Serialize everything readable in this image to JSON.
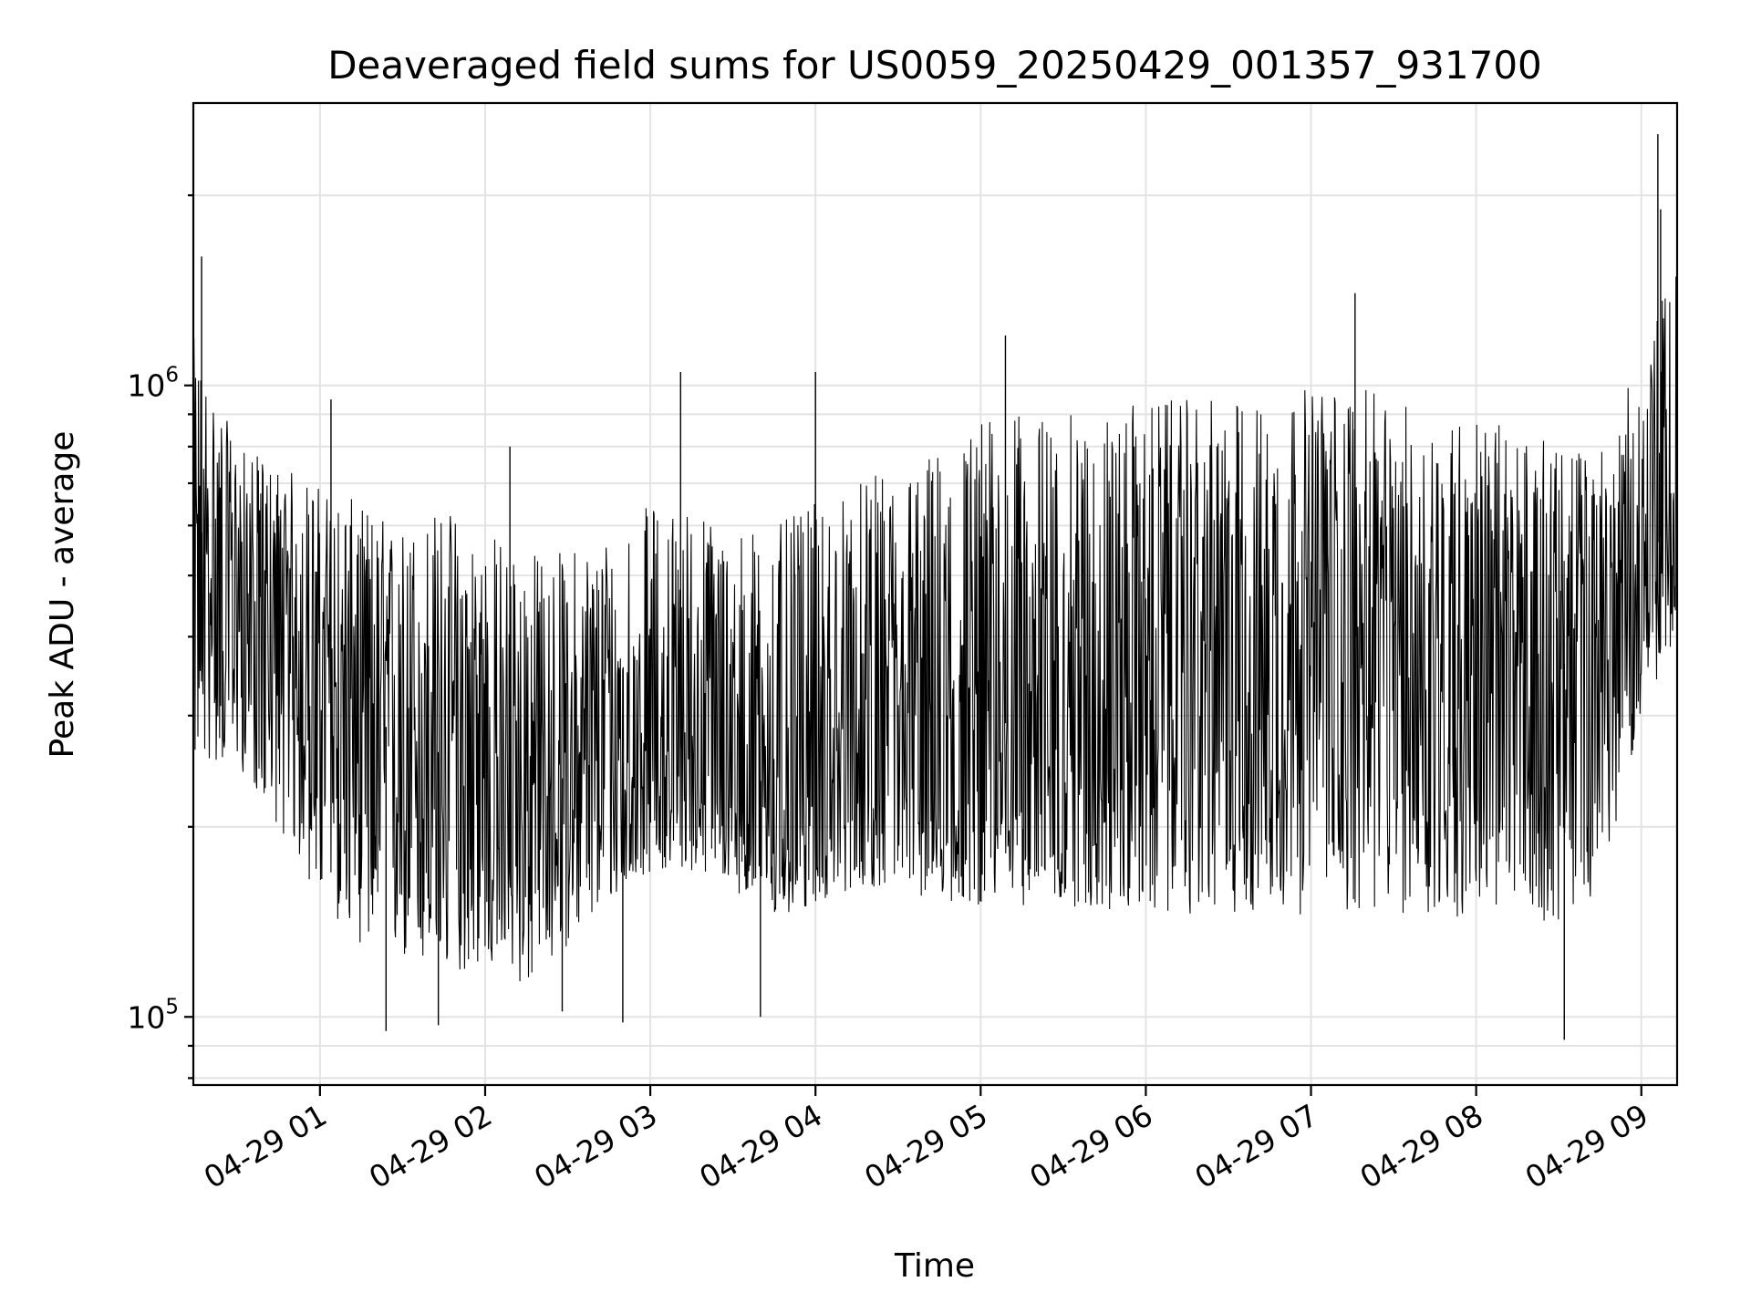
{
  "chart_data": {
    "type": "line",
    "title": "Deaveraged field sums for US0059_20250429_001357_931700",
    "xlabel": "Time",
    "ylabel": "Peak ADU - average",
    "yscale": "log",
    "xlim": [
      "04-29 00:14",
      "04-29 09:13"
    ],
    "ylim": [
      78000,
      2800000
    ],
    "grid": true,
    "line_color": "#000000",
    "x_ticks": [
      "04-29 01",
      "04-29 02",
      "04-29 03",
      "04-29 04",
      "04-29 05",
      "04-29 06",
      "04-29 07",
      "04-29 08",
      "04-29 09"
    ],
    "y_ticks": [
      {
        "base": "10",
        "exp": "5",
        "value": 100000
      },
      {
        "base": "10",
        "exp": "6",
        "value": 1000000
      }
    ],
    "series": [
      {
        "x": [
          "04-29 00:14",
          "04-29 00:30",
          "04-29 00:45",
          "04-29 01:00",
          "04-29 01:15",
          "04-29 01:30",
          "04-29 01:45",
          "04-29 02:00",
          "04-29 02:15",
          "04-29 02:30",
          "04-29 02:45",
          "04-29 03:00",
          "04-29 03:15",
          "04-29 03:30",
          "04-29 03:45",
          "04-29 04:00",
          "04-29 04:15",
          "04-29 04:30",
          "04-29 04:45",
          "04-29 05:00",
          "04-29 05:15",
          "04-29 05:30",
          "04-29 05:45",
          "04-29 06:00",
          "04-29 06:15",
          "04-29 06:30",
          "04-29 06:45",
          "04-29 07:00",
          "04-29 07:15",
          "04-29 07:30",
          "04-29 07:45",
          "04-29 08:00",
          "04-29 08:15",
          "04-29 08:30",
          "04-29 08:45",
          "04-29 09:00",
          "04-29 09:13"
        ],
        "low": [
          250000,
          250000,
          200000,
          150000,
          130000,
          120000,
          115000,
          120000,
          110000,
          130000,
          150000,
          170000,
          170000,
          160000,
          140000,
          150000,
          160000,
          160000,
          150000,
          150000,
          150000,
          150000,
          145000,
          145000,
          145000,
          145000,
          145000,
          145000,
          145000,
          145000,
          140000,
          145000,
          145000,
          140000,
          160000,
          300000,
          400000
        ],
        "median": [
          500000,
          480000,
          400000,
          350000,
          300000,
          280000,
          260000,
          240000,
          230000,
          240000,
          250000,
          260000,
          270000,
          250000,
          230000,
          240000,
          260000,
          270000,
          260000,
          280000,
          300000,
          320000,
          340000,
          350000,
          360000,
          370000,
          380000,
          400000,
          400000,
          390000,
          380000,
          380000,
          370000,
          360000,
          380000,
          500000,
          650000
        ],
        "high": [
          1200000,
          800000,
          750000,
          700000,
          650000,
          600000,
          650000,
          600000,
          550000,
          550000,
          600000,
          650000,
          650000,
          600000,
          600000,
          650000,
          700000,
          750000,
          800000,
          900000,
          900000,
          900000,
          900000,
          950000,
          950000,
          950000,
          950000,
          1000000,
          1000000,
          950000,
          900000,
          900000,
          850000,
          800000,
          800000,
          1100000,
          1600000
        ]
      }
    ],
    "notable_points": [
      {
        "x": "04-29 00:17",
        "y": 1600000
      },
      {
        "x": "04-29 01:04",
        "y": 950000
      },
      {
        "x": "04-29 01:24",
        "y": 95000
      },
      {
        "x": "04-29 01:43",
        "y": 97000
      },
      {
        "x": "04-29 02:09",
        "y": 800000
      },
      {
        "x": "04-29 02:28",
        "y": 102000
      },
      {
        "x": "04-29 02:50",
        "y": 98000
      },
      {
        "x": "04-29 03:11",
        "y": 1050000
      },
      {
        "x": "04-29 03:40",
        "y": 100000
      },
      {
        "x": "04-29 04:00",
        "y": 1050000
      },
      {
        "x": "04-29 05:09",
        "y": 1200000
      },
      {
        "x": "04-29 07:16",
        "y": 1400000
      },
      {
        "x": "04-29 08:32",
        "y": 92000
      },
      {
        "x": "04-29 09:06",
        "y": 2500000
      },
      {
        "x": "04-29 09:07",
        "y": 1900000
      }
    ]
  }
}
